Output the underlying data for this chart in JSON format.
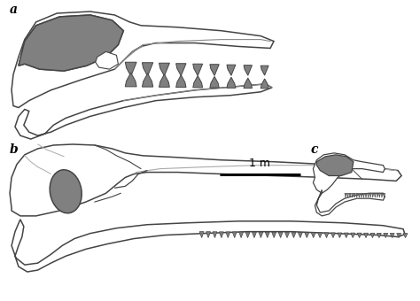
{
  "background_color": "#ffffff",
  "outline_color": "#444444",
  "fill_dark": "#808080",
  "label_a": "a",
  "label_b": "b",
  "label_c": "c",
  "scale_label": "1 m",
  "label_fontsize": 10
}
